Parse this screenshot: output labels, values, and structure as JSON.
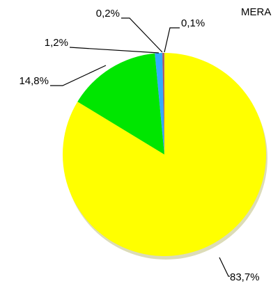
{
  "chart_data": {
    "type": "pie",
    "title": "MERA",
    "values": [
      83.7,
      14.8,
      1.2,
      0.2,
      0.1
    ],
    "value_labels": [
      "83,7%",
      "14,8%",
      "1,2%",
      "0,2%",
      "0,1%"
    ],
    "colors": [
      "#ffff00",
      "#00e600",
      "#33aaff",
      "#c0504d",
      "#8064a2"
    ]
  }
}
